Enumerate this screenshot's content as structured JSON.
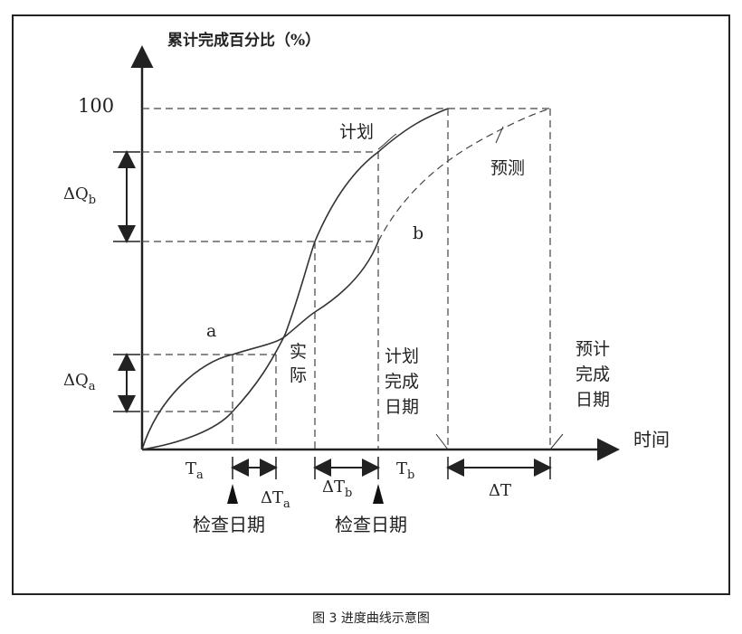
{
  "diagram": {
    "y_axis_title": "累计完成百分比（%）",
    "y_level_label": "100",
    "x_axis_title": "时间",
    "delta_q_b": {
      "text": "ΔQ",
      "sub": "b"
    },
    "delta_q_a": {
      "text": "ΔQ",
      "sub": "a"
    },
    "curve_plan_label": "计划",
    "curve_forecast_label": "预测",
    "point_b_label": "b",
    "point_a_label": "a",
    "curve_actual_label": [
      "实",
      "际"
    ],
    "plan_finish_label": [
      "计划",
      "完成",
      "日期"
    ],
    "forecast_finish_label": [
      "预计",
      "完成",
      "日期"
    ],
    "t_a": {
      "text": "T",
      "sub": "a"
    },
    "delta_t_a": {
      "text": "ΔT",
      "sub": "a"
    },
    "delta_t_b": {
      "text": "ΔT",
      "sub": "b"
    },
    "t_b": {
      "text": "T",
      "sub": "b"
    },
    "delta_t": "ΔT",
    "check_date_1": "检查日期",
    "check_date_2": "检查日期"
  },
  "caption": "图 3 进度曲线示意图"
}
